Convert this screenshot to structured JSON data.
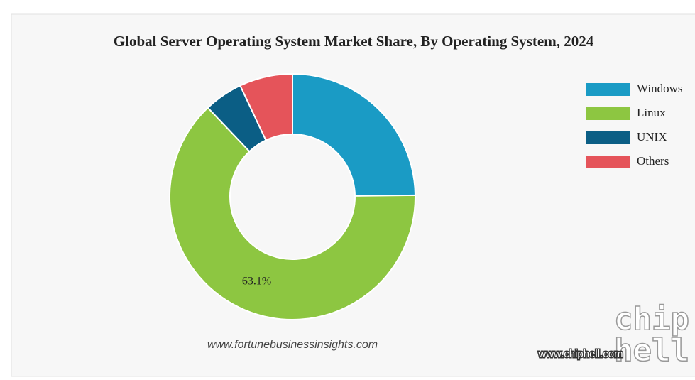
{
  "chart_data": {
    "type": "pie",
    "title": "Global Server Operating System Market Share, By Operating System, 2024",
    "categories": [
      "Windows",
      "Linux",
      "UNIX",
      "Others"
    ],
    "values": [
      24.8,
      63.1,
      5.1,
      7.0
    ],
    "value_labels": [
      null,
      "63.1%",
      null,
      null
    ],
    "colors": [
      "#1a9bc5",
      "#8dc641",
      "#0b5e85",
      "#e5545a"
    ],
    "legend": "right",
    "source": "www.fortunebusinessinsights.com"
  },
  "watermark": {
    "site": "www.chiphell.com",
    "logo": [
      "chip",
      "hell"
    ]
  }
}
